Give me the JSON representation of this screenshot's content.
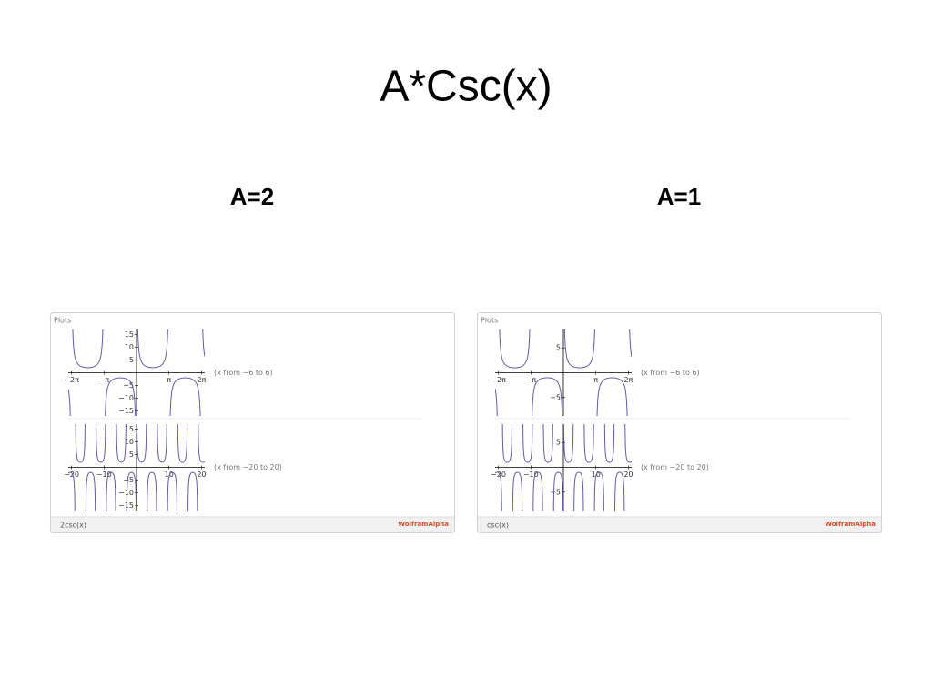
{
  "title": "A*Csc(x)",
  "panels": [
    {
      "heading": "A=2",
      "amplitude": 2,
      "section_label": "Plots",
      "formula": "2csc(x)",
      "brand": "WolframAlpha",
      "plots": [
        {
          "range_label": "(x from −6 to 6)",
          "xlim": [
            -6.6,
            6.6
          ],
          "ylim": [
            -17,
            17
          ],
          "xticks": [
            {
              "value": -6.2832,
              "label": "−2π"
            },
            {
              "value": -3.1416,
              "label": "−π"
            },
            {
              "value": 3.1416,
              "label": "π"
            },
            {
              "value": 6.2832,
              "label": "2π"
            }
          ],
          "yticks": [
            15,
            10,
            5,
            {
              "value": -5,
              "label": "−5"
            },
            {
              "value": -10,
              "label": "−10"
            },
            {
              "value": -15,
              "label": "−15"
            }
          ]
        },
        {
          "range_label": "(x from −20 to 20)",
          "xlim": [
            -21,
            21
          ],
          "ylim": [
            -17,
            17
          ],
          "xticks": [
            {
              "value": -20,
              "label": "−20"
            },
            {
              "value": -10,
              "label": "−10"
            },
            10,
            20
          ],
          "yticks": [
            15,
            10,
            5,
            {
              "value": -5,
              "label": "−5"
            },
            {
              "value": -10,
              "label": "−10"
            },
            {
              "value": -15,
              "label": "−15"
            }
          ]
        }
      ]
    },
    {
      "heading": "A=1",
      "amplitude": 1,
      "section_label": "Plots",
      "formula": "csc(x)",
      "brand": "WolframAlpha",
      "plots": [
        {
          "range_label": "(x from −6 to 6)",
          "xlim": [
            -6.6,
            6.6
          ],
          "ylim": [
            -8.7,
            8.7
          ],
          "xticks": [
            {
              "value": -6.2832,
              "label": "−2π"
            },
            {
              "value": -3.1416,
              "label": "−π"
            },
            {
              "value": 3.1416,
              "label": "π"
            },
            {
              "value": 6.2832,
              "label": "2π"
            }
          ],
          "yticks": [
            5,
            {
              "value": -5,
              "label": "−5"
            }
          ]
        },
        {
          "range_label": "(x from −20 to 20)",
          "xlim": [
            -21,
            21
          ],
          "ylim": [
            -8.7,
            8.7
          ],
          "xticks": [
            {
              "value": -20,
              "label": "−20"
            },
            {
              "value": -10,
              "label": "−10"
            },
            10,
            20
          ],
          "yticks": [
            5,
            {
              "value": -5,
              "label": "−5"
            }
          ]
        }
      ]
    }
  ]
}
